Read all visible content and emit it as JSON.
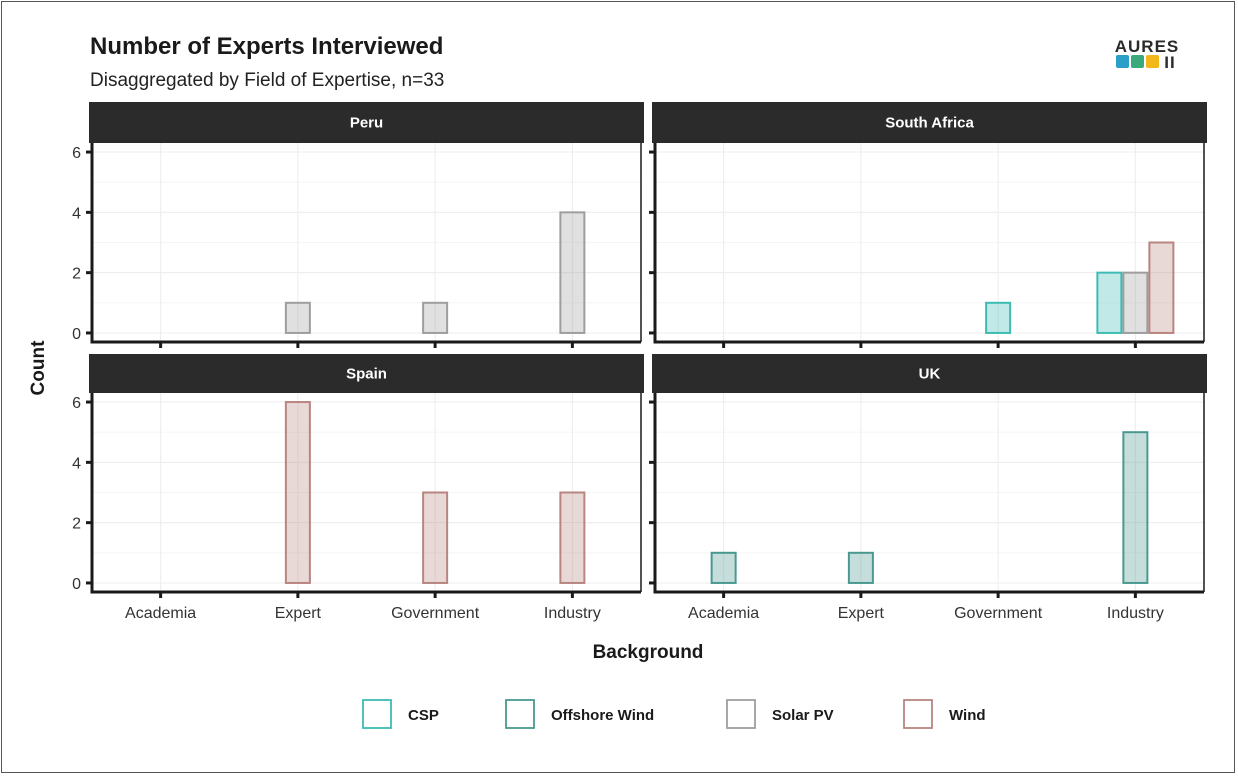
{
  "chart_data": {
    "type": "bar",
    "title": "Number of Experts Interviewed",
    "subtitle": "Disaggregated by Field of Expertise, n=33",
    "xlabel": "Background",
    "ylabel": "Count",
    "ylim": [
      0,
      6
    ],
    "yticks": [
      0,
      2,
      4,
      6
    ],
    "grid": true,
    "legend_position": "bottom",
    "categories": [
      "Academia",
      "Expert",
      "Government",
      "Industry"
    ],
    "series": [
      {
        "name": "CSP",
        "color": "#3dbcb4"
      },
      {
        "name": "Offshore Wind",
        "color": "#4a9990"
      },
      {
        "name": "Solar PV",
        "color": "#9e9e9e"
      },
      {
        "name": "Wind",
        "color": "#b98580"
      }
    ],
    "facets": [
      {
        "name": "Peru",
        "bars": [
          {
            "category": "Expert",
            "series": "Solar PV",
            "value": 1
          },
          {
            "category": "Government",
            "series": "Solar PV",
            "value": 1
          },
          {
            "category": "Industry",
            "series": "Solar PV",
            "value": 4
          }
        ]
      },
      {
        "name": "South Africa",
        "bars": [
          {
            "category": "Government",
            "series": "CSP",
            "value": 1
          },
          {
            "category": "Industry",
            "series": "CSP",
            "value": 2
          },
          {
            "category": "Industry",
            "series": "Solar PV",
            "value": 2
          },
          {
            "category": "Industry",
            "series": "Wind",
            "value": 3
          }
        ]
      },
      {
        "name": "Spain",
        "bars": [
          {
            "category": "Expert",
            "series": "Wind",
            "value": 6
          },
          {
            "category": "Government",
            "series": "Wind",
            "value": 3
          },
          {
            "category": "Industry",
            "series": "Wind",
            "value": 3
          }
        ]
      },
      {
        "name": "UK",
        "bars": [
          {
            "category": "Academia",
            "series": "Offshore Wind",
            "value": 1
          },
          {
            "category": "Expert",
            "series": "Offshore Wind",
            "value": 1
          },
          {
            "category": "Industry",
            "series": "Offshore Wind",
            "value": 5
          }
        ]
      }
    ]
  },
  "logo": {
    "text": "AURES",
    "roman": "II",
    "icon_names": [
      "wind-turbine-icon",
      "solar-panel-icon",
      "sun-icon"
    ]
  }
}
